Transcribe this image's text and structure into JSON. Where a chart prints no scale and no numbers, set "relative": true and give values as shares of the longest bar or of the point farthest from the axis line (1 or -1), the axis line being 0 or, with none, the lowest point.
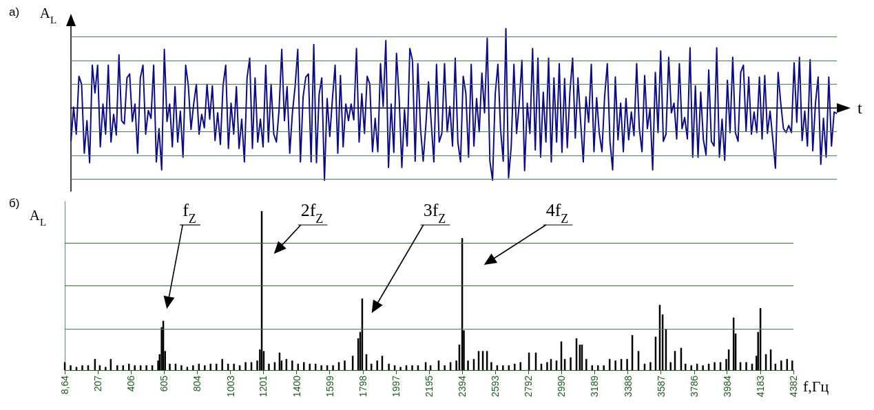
{
  "chart_data": [
    {
      "type": "line",
      "title": "а)",
      "xlabel": "t",
      "ylabel": "A$_{L}$",
      "relative": true,
      "color": "#0b0b8a",
      "ref_lines": [
        {
          "axis": "y",
          "value": 0.9,
          "color": "#4d7d4d"
        },
        {
          "axis": "y",
          "value": 0.6,
          "color": "#4d7d4d"
        },
        {
          "axis": "y",
          "value": 0.3,
          "color": "#4d7d4d"
        },
        {
          "axis": "y",
          "value": -0.3,
          "color": "#4d7d4d"
        },
        {
          "axis": "y",
          "value": -0.6,
          "color": "#4d7d4d"
        },
        {
          "axis": "y",
          "value": -0.9,
          "color": "#4d7d4d"
        }
      ],
      "categories": [
        null,
        null,
        null,
        null,
        null,
        null,
        null,
        null,
        null,
        null,
        null,
        null,
        null,
        null,
        null,
        null,
        null,
        null,
        null,
        null,
        null,
        null,
        null,
        null,
        null,
        null,
        null,
        null,
        null,
        null,
        null,
        null,
        null,
        null,
        null,
        null,
        null,
        null,
        null,
        null,
        null,
        null,
        null,
        null,
        null,
        null,
        null,
        null,
        null,
        null,
        null,
        null,
        null,
        null,
        null,
        null,
        null,
        null,
        null,
        null,
        null,
        null,
        null,
        null,
        null,
        null,
        null,
        null,
        null,
        null,
        null,
        null,
        null,
        null,
        null,
        null,
        null,
        null,
        null,
        null,
        null,
        null,
        null,
        null,
        null,
        null,
        null,
        null,
        null,
        null,
        null,
        null,
        null,
        null,
        null,
        null,
        null,
        null,
        null,
        null,
        null,
        null,
        null,
        null,
        null,
        null,
        null,
        null,
        null,
        null,
        null,
        null,
        null,
        null,
        null,
        null,
        null,
        null,
        null,
        null,
        null,
        null,
        null,
        null,
        null,
        null,
        null,
        null,
        null,
        null,
        null,
        null,
        null,
        null,
        null,
        null,
        null,
        null,
        null,
        null,
        null,
        null,
        null,
        null,
        null,
        null,
        null,
        null,
        null,
        null,
        null,
        null,
        null,
        null,
        null,
        null,
        null,
        null,
        null,
        null,
        null,
        null,
        null,
        null,
        null,
        null,
        null,
        null,
        null,
        null,
        null,
        null,
        null,
        null,
        null,
        null,
        null,
        null,
        null,
        null,
        null,
        null,
        null,
        null,
        null,
        null,
        null,
        null,
        null,
        null,
        null,
        null,
        null,
        null,
        null,
        null,
        null,
        null,
        null,
        null,
        null,
        null,
        null,
        null,
        null,
        null,
        null,
        null,
        null,
        null,
        null,
        null,
        null,
        null,
        null,
        null,
        null,
        null,
        null,
        null,
        null,
        null,
        null,
        null,
        null,
        null,
        null,
        null,
        null,
        null,
        null,
        null,
        null,
        null,
        null,
        null,
        null,
        null,
        null,
        null,
        null,
        null,
        null,
        null,
        null,
        null,
        null,
        null,
        null,
        null,
        null,
        null,
        null,
        null,
        null,
        null,
        null,
        null,
        null,
        null,
        null,
        null,
        null,
        null,
        null,
        null,
        null,
        null,
        null,
        null,
        null,
        null,
        null,
        null,
        null,
        null,
        null,
        null,
        null,
        null,
        null,
        null,
        null,
        null,
        null,
        null,
        null,
        null
      ],
      "values": [
        -0.42,
        0.01,
        -0.33,
        0.4,
        0.3,
        -0.57,
        -0.16,
        -0.69,
        0.54,
        0.19,
        0.54,
        -0.49,
        0.05,
        -0.33,
        0.54,
        -0.43,
        -0.08,
        -0.34,
        0.67,
        -0.16,
        -0.2,
        0.38,
        0.43,
        -0.17,
        0.05,
        -0.57,
        0.38,
        0.54,
        -0.33,
        -0.03,
        -0.13,
        0.54,
        -0.68,
        -0.26,
        -0.78,
        0.74,
        -0.17,
        0.05,
        -0.49,
        0.27,
        -0.43,
        -0.04,
        -0.62,
        0.54,
        0.28,
        -0.27,
        0.05,
        0.3,
        -0.33,
        -0.08,
        -0.25,
        0.3,
        -0.14,
        0.28,
        -0.41,
        -0.06,
        -0.46,
        0.28,
        0.54,
        -0.51,
        0.06,
        -0.33,
        0.27,
        -0.51,
        -0.14,
        -0.68,
        0.38,
        0.63,
        -0.51,
        0.38,
        -0.43,
        -0.14,
        -0.49,
        0.54,
        -0.43,
        0.3,
        -0.33,
        -0.43,
        -0.02,
        0.74,
        -0.16,
        0.27,
        -0.57,
        -0.06,
        0.27,
        0.74,
        -0.68,
        0.14,
        0.39,
        0.43,
        -0.68,
        0.8,
        -0.69,
        0.17,
        0.38,
        -0.91,
        0.12,
        -0.36,
        0.12,
        0.54,
        -0.57,
        0.41,
        -0.49,
        0.05,
        -0.16,
        0.05,
        -0.15,
        0.75,
        -0.43,
        0.18,
        -0.32,
        0.4,
        0.3,
        -0.55,
        -0.13,
        -0.55,
        0.56,
        0.02,
        0.85,
        -0.75,
        0.05,
        -0.56,
        0.69,
        0.12,
        -0.75,
        -0.02,
        -0.48,
        0.75,
        0.6,
        -0.67,
        0.56,
        -0.26,
        -0.67,
        -0.22,
        0.33,
        -0.18,
        -0.68,
        0.55,
        -0.43,
        -0.32,
        0.56,
        -0.3,
        0.02,
        -0.48,
        0.63,
        -0.43,
        -0.68,
        0.4,
        0.18,
        -0.62,
        0.55,
        -0.48,
        0.12,
        -0.3,
        0.44,
        -0.06,
        0.88,
        -0.67,
        -0.91,
        0.18,
        0.55,
        -0.27,
        -0.67,
        1,
        -0.88,
        -0.48,
        0.55,
        -0.32,
        0.06,
        0.6,
        -0.79,
        0.06,
        -0.32,
        0.75,
        -0.53,
        0.63,
        -0.62,
        0.2,
        -0.43,
        0.63,
        -0.68,
        0.38,
        -0.43,
        0.56,
        -0.56,
        0.37,
        -0.5,
        0.21,
        0.63,
        -0.38,
        0.38,
        -0.17,
        -0.68,
        0.14,
        -0.18,
        0.55,
        -0.55,
        0.13,
        -0.32,
        -0.55,
        0.15,
        0.56,
        -0.42,
        -0.78,
        0.39,
        -0.4,
        0.06,
        -0.55,
        0.12,
        -0.4,
        -0.05,
        -0.35,
        0.56,
        -0.26,
        -0.55,
        0.41,
        -0.26,
        -0.01,
        -0.78,
        0.45,
        -0.31,
        0.72,
        -0.42,
        -0.33,
        0.64,
        -0.06,
        0.06,
        -0.39,
        0.56,
        -0.26,
        -0.12,
        -0.39,
        0.76,
        -0.62,
        0.28,
        -0.62,
        0.2,
        -0.4,
        -0.59,
        0.48,
        -0.42,
        -0.48,
        0.76,
        -0.62,
        -0.14,
        -0.66,
        0.35,
        -0.31,
        0.64,
        -0.31,
        -0.42,
        0.45,
        0.54,
        -0.29,
        0.39,
        -0.33,
        -0.05,
        -0.31,
        0.39,
        -0.39,
        0.41,
        -0.32,
        -0.04,
        -0.39,
        -0.76,
        0.45,
        0.06,
        -0.26,
        -0.31,
        -0.22,
        -0.31,
        0.57,
        -0.18,
        0.64,
        -0.41,
        -0.04,
        -0.48,
        0.61,
        -0.54,
        0.06,
        0.39,
        -0.71,
        -0.13,
        -0.62,
        0.39,
        -0.48,
        -0.05,
        -0.07
      ]
    },
    {
      "type": "bar",
      "title": "б)",
      "xlabel": "f,Гц",
      "ylabel": "A$_{L}$",
      "relative": true,
      "tick_labels": "x",
      "color": "#000000",
      "ref_lines": [
        {
          "axis": "y",
          "value": 0.8,
          "color": "#2f6b2f"
        },
        {
          "axis": "y",
          "value": 0.53,
          "color": "#2f6b2f"
        },
        {
          "axis": "y",
          "value": 0.26,
          "color": "#4d7d4d"
        }
      ],
      "xlim": [
        8.64,
        4382
      ],
      "xticks": [
        {
          "value": 8.64,
          "label": "8,64"
        },
        207,
        406,
        605,
        804,
        1003,
        1201,
        1400,
        1599,
        1798,
        1997,
        2195,
        2394,
        2593,
        2792,
        2990,
        3189,
        3388,
        3587,
        3786,
        3984,
        4183,
        4382
      ],
      "x": [
        9,
        44,
        79,
        114,
        149,
        190,
        219,
        254,
        285,
        324,
        359,
        394,
        429,
        464,
        499,
        534,
        569,
        578,
        590,
        600,
        611,
        639,
        674,
        709,
        744,
        779,
        814,
        849,
        884,
        919,
        954,
        989,
        1024,
        1059,
        1094,
        1129,
        1164,
        1180,
        1191,
        1203,
        1234,
        1269,
        1298,
        1310,
        1339,
        1374,
        1409,
        1444,
        1479,
        1514,
        1549,
        1584,
        1619,
        1654,
        1689,
        1737,
        1770,
        1782,
        1794,
        1819,
        1849,
        1884,
        1914,
        1954,
        1989,
        2024,
        2059,
        2094,
        2129,
        2175,
        2204,
        2253,
        2289,
        2324,
        2359,
        2377,
        2394,
        2404,
        2429,
        2464,
        2493,
        2518,
        2543,
        2569,
        2604,
        2639,
        2674,
        2709,
        2744,
        2795,
        2836,
        2869,
        2904,
        2927,
        2960,
        2989,
        3010,
        3045,
        3080,
        3100,
        3113,
        3139,
        3174,
        3209,
        3244,
        3279,
        3314,
        3349,
        3384,
        3415,
        3452,
        3489,
        3524,
        3555,
        3580,
        3597,
        3617,
        3645,
        3671,
        3708,
        3734,
        3769,
        3804,
        3839,
        3874,
        3909,
        3944,
        3979,
        3994,
        4023,
        4035,
        4064,
        4099,
        4134,
        4160,
        4170,
        4184,
        4217,
        4246,
        4274,
        4309,
        4344,
        4375
      ],
      "values": [
        0.05,
        0.03,
        0.02,
        0.03,
        0.03,
        0.07,
        0.03,
        0.02,
        0.07,
        0.03,
        0.03,
        0.04,
        0.03,
        0.03,
        0.03,
        0.03,
        0.06,
        0.1,
        0.27,
        0.31,
        0.12,
        0.04,
        0.04,
        0.03,
        0.02,
        0.03,
        0.04,
        0.03,
        0.04,
        0.04,
        0.07,
        0.04,
        0.04,
        0.03,
        0.05,
        0.05,
        0.06,
        0.13,
        1,
        0.12,
        0.04,
        0.05,
        0.11,
        0.06,
        0.07,
        0.06,
        0.04,
        0.05,
        0.04,
        0.04,
        0.03,
        0.03,
        0.03,
        0.05,
        0.06,
        0.09,
        0.2,
        0.24,
        0.45,
        0.1,
        0.04,
        0.06,
        0.09,
        0.04,
        0.03,
        0.02,
        0.03,
        0.03,
        0.03,
        0.05,
        0.03,
        0.06,
        0.03,
        0.05,
        0.06,
        0.16,
        0.83,
        0.25,
        0.06,
        0.07,
        0.12,
        0.12,
        0.12,
        0.05,
        0.03,
        0.03,
        0.03,
        0.04,
        0.05,
        0.11,
        0.11,
        0.04,
        0.05,
        0.07,
        0.06,
        0.18,
        0.07,
        0.08,
        0.2,
        0.16,
        0.16,
        0.07,
        0.03,
        0.03,
        0.03,
        0.07,
        0.06,
        0.07,
        0.07,
        0.22,
        0.12,
        0.04,
        0.05,
        0.21,
        0.41,
        0.35,
        0.26,
        0.05,
        0.12,
        0.14,
        0.04,
        0.03,
        0.04,
        0.03,
        0.04,
        0.05,
        0.05,
        0.07,
        0.13,
        0.33,
        0.23,
        0.05,
        0.05,
        0.04,
        0.09,
        0.24,
        0.39,
        0.1,
        0.13,
        0.04,
        0.06,
        0.07,
        0.06
      ],
      "annotations": [
        "f$_{Z}$",
        "2f$_{Z}$",
        "3f$_{Z}$",
        "4f$_{Z}$"
      ]
    }
  ]
}
